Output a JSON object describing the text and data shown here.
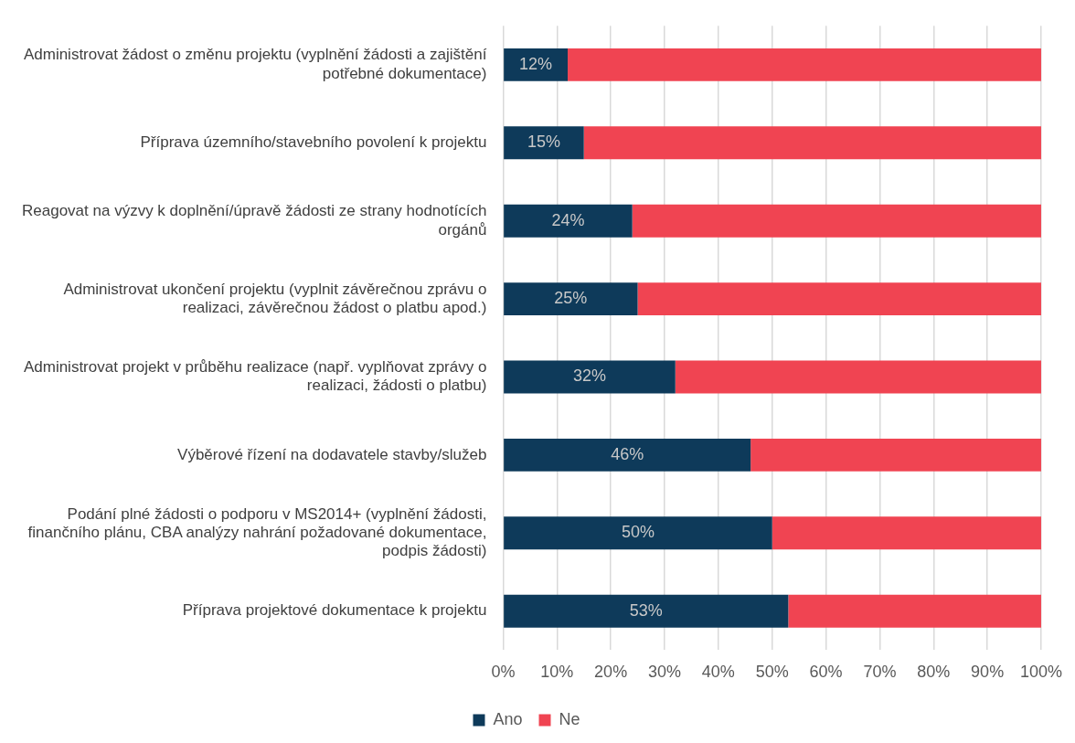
{
  "chart_data": {
    "type": "bar",
    "orientation": "horizontal",
    "stacked": true,
    "categories": [
      "Administrovat žádost o změnu projektu (vyplnění žádosti a zajištění potřebné dokumentace)",
      "Příprava územního/stavebního povolení k projektu",
      "Reagovat na výzvy k doplnění/úpravě žádosti ze strany hodnotících orgánů",
      "Administrovat ukončení projektu (vyplnit závěrečnou zprávu o realizaci, závěrečnou žádost o platbu apod.)",
      "Administrovat projekt v průběhu realizace (např. vyplňovat zprávy o realizaci, žádosti o platbu)",
      "Výběrové řízení na dodavatele stavby/služeb",
      "Podání plné žádosti o podporu v MS2014+ (vyplnění žádosti, finančního plánu, CBA analýzy nahrání požadované dokumentace, podpis žádosti)",
      "Příprava projektové dokumentace k projektu"
    ],
    "series": [
      {
        "name": "Ano",
        "color": "#0e3a5a",
        "values": [
          12,
          15,
          24,
          25,
          32,
          46,
          50,
          53
        ],
        "value_labels": [
          "12%",
          "15%",
          "24%",
          "25%",
          "32%",
          "46%",
          "50%",
          "53%"
        ]
      },
      {
        "name": "Ne",
        "color": "#f04452",
        "values": [
          88,
          85,
          76,
          75,
          68,
          54,
          50,
          47
        ]
      }
    ],
    "xlim": [
      0,
      100
    ],
    "xticks": [
      {
        "value": 0,
        "label": "0%"
      },
      {
        "value": 10,
        "label": "10%"
      },
      {
        "value": 20,
        "label": "20%"
      },
      {
        "value": 30,
        "label": "30%"
      },
      {
        "value": 40,
        "label": "40%"
      },
      {
        "value": 50,
        "label": "50%"
      },
      {
        "value": 60,
        "label": "60%"
      },
      {
        "value": 70,
        "label": "70%"
      },
      {
        "value": 80,
        "label": "80%"
      },
      {
        "value": 90,
        "label": "90%"
      },
      {
        "value": 100,
        "label": "100%"
      }
    ],
    "grid": "x",
    "legend": "bottom"
  }
}
